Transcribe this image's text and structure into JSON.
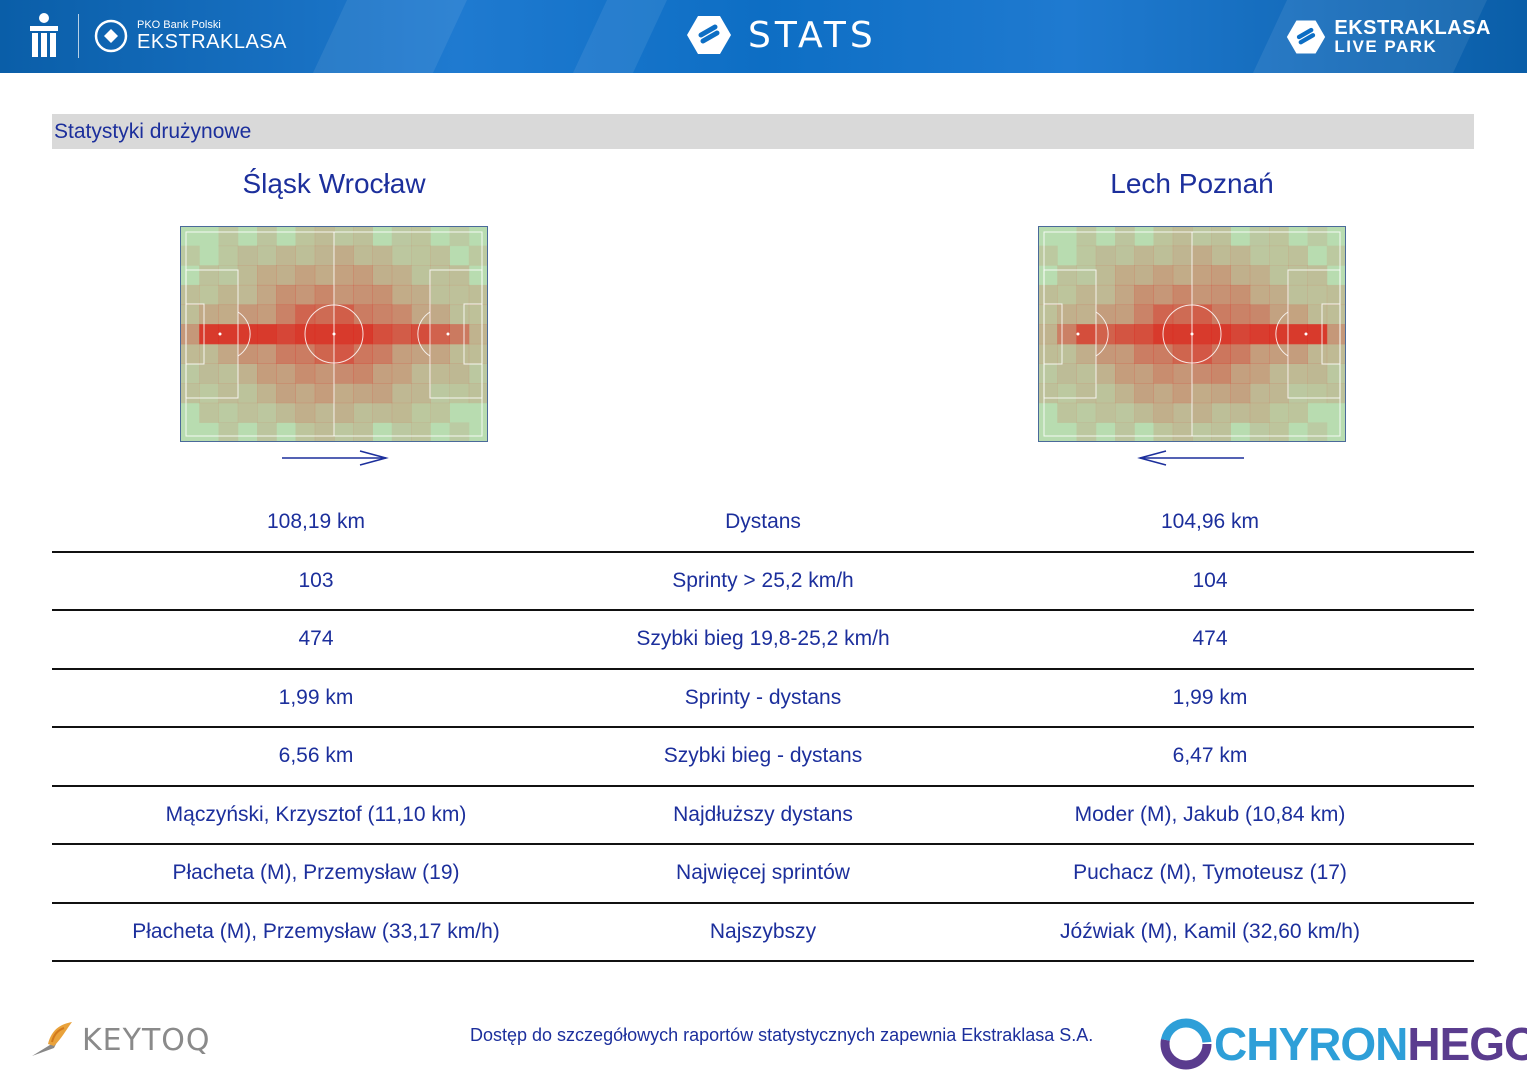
{
  "header": {
    "sponsor_small": "PKO Bank Polski",
    "sponsor_big": "EKSTRAKLASA",
    "center_title": "STATS",
    "right_line1": "EKSTRAKLASA",
    "right_line2": "LIVE PARK"
  },
  "section_title": "Statystyki drużynowe",
  "teams": {
    "home": "Śląsk Wrocław",
    "away": "Lech Poznań"
  },
  "stats": [
    {
      "home": "108,19 km",
      "label": "Dystans",
      "away": "104,96 km"
    },
    {
      "home": "103",
      "label": "Sprinty > 25,2 km/h",
      "away": "104"
    },
    {
      "home": "474",
      "label": "Szybki bieg 19,8-25,2 km/h",
      "away": "474"
    },
    {
      "home": "1,99 km",
      "label": "Sprinty - dystans",
      "away": "1,99 km"
    },
    {
      "home": "6,56 km",
      "label": "Szybki bieg - dystans",
      "away": "6,47 km"
    },
    {
      "home": "Mączyński, Krzysztof (11,10 km)",
      "label": "Najdłuższy dystans",
      "away": "Moder (M), Jakub (10,84 km)"
    },
    {
      "home": "Płacheta (M), Przemysław (19)",
      "label": "Najwięcej sprintów",
      "away": "Puchacz (M), Tymoteusz (17)"
    },
    {
      "home": "Płacheta (M), Przemysław (33,17 km/h)",
      "label": "Najszybszy",
      "away": "Jóźwiak (M), Kamil (32,60 km/h)"
    }
  ],
  "footer": {
    "note": "Dostęp do szczegółowych raportów statystycznych zapewnia Ekstraklasa S.A.",
    "left_logo": "KEYTOQ",
    "right_logo_a": "CHYRON",
    "right_logo_b": "HEGO"
  },
  "colors": {
    "header_blue": "#0d6ec4",
    "text_blue": "#1c2f9c",
    "pitch_green": "#b8dcb0",
    "heat_red": "#d9391c"
  }
}
